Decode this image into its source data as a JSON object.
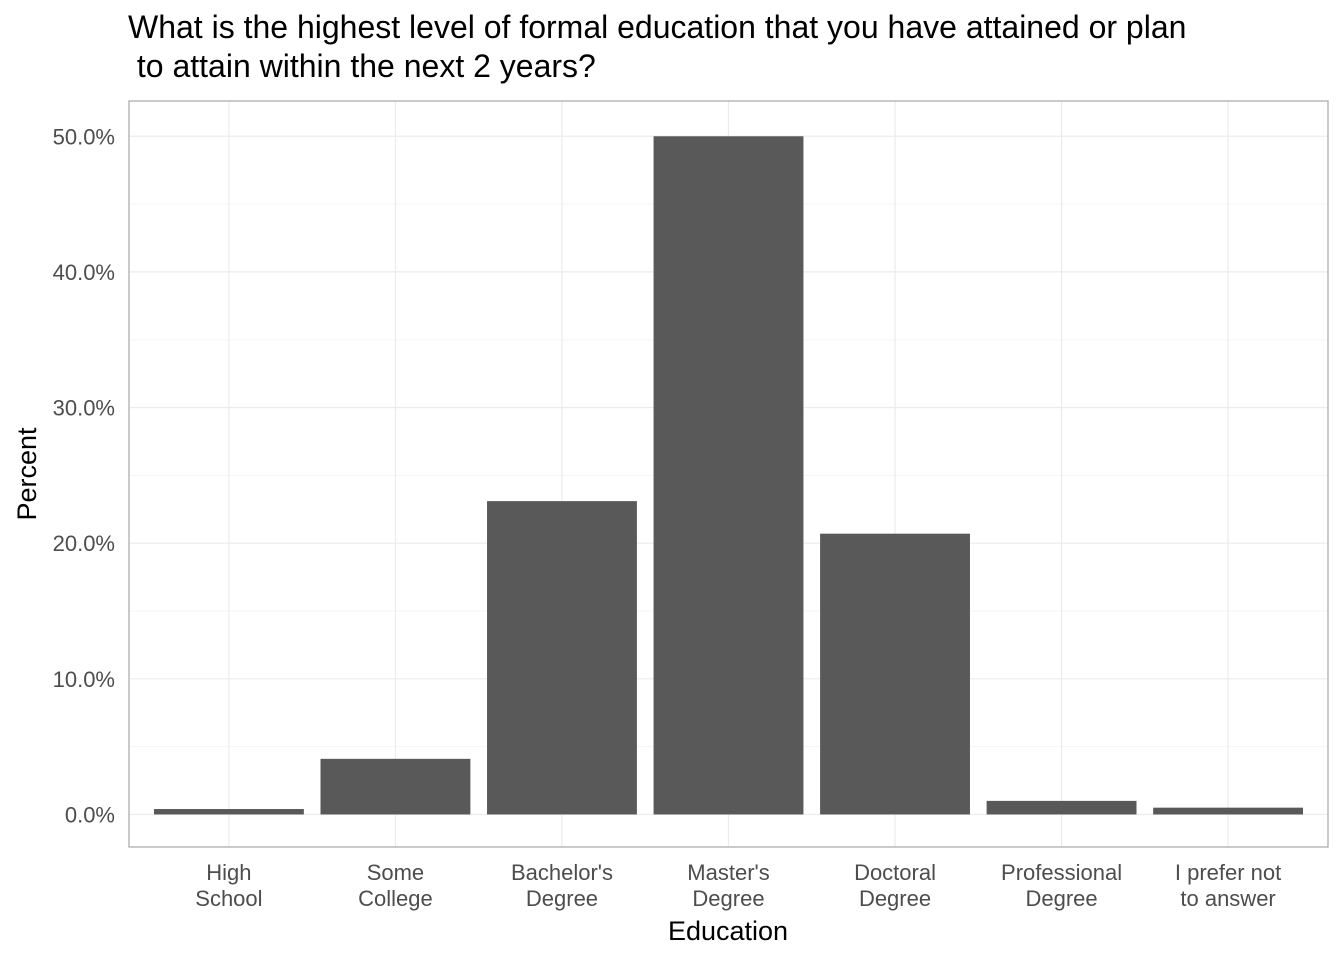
{
  "chart_data": {
    "type": "bar",
    "title": "What is the highest level of formal education that you have attained or plan\n to attain within the next 2 years?",
    "xlabel": "Education",
    "ylabel": "Percent",
    "categories": [
      "High\nSchool",
      "Some\nCollege",
      "Bachelor's\nDegree",
      "Master's\nDegree",
      "Doctoral\nDegree",
      "Professional\nDegree",
      "I prefer not\nto answer"
    ],
    "values": [
      0.4,
      4.1,
      23.1,
      50.0,
      20.7,
      1.0,
      0.5
    ],
    "ylim": [
      -2.4,
      52.6
    ],
    "y_ticks": [
      0,
      10,
      20,
      30,
      40,
      50
    ],
    "y_tick_labels": [
      "0.0%",
      "10.0%",
      "20.0%",
      "30.0%",
      "40.0%",
      "50.0%"
    ],
    "grid": true,
    "legend": "none",
    "colors": {
      "bar": "#595959",
      "panel_border": "#b3b3b3",
      "grid_major": "#ebebeb",
      "grid_minor": "#f5f5f5"
    }
  }
}
